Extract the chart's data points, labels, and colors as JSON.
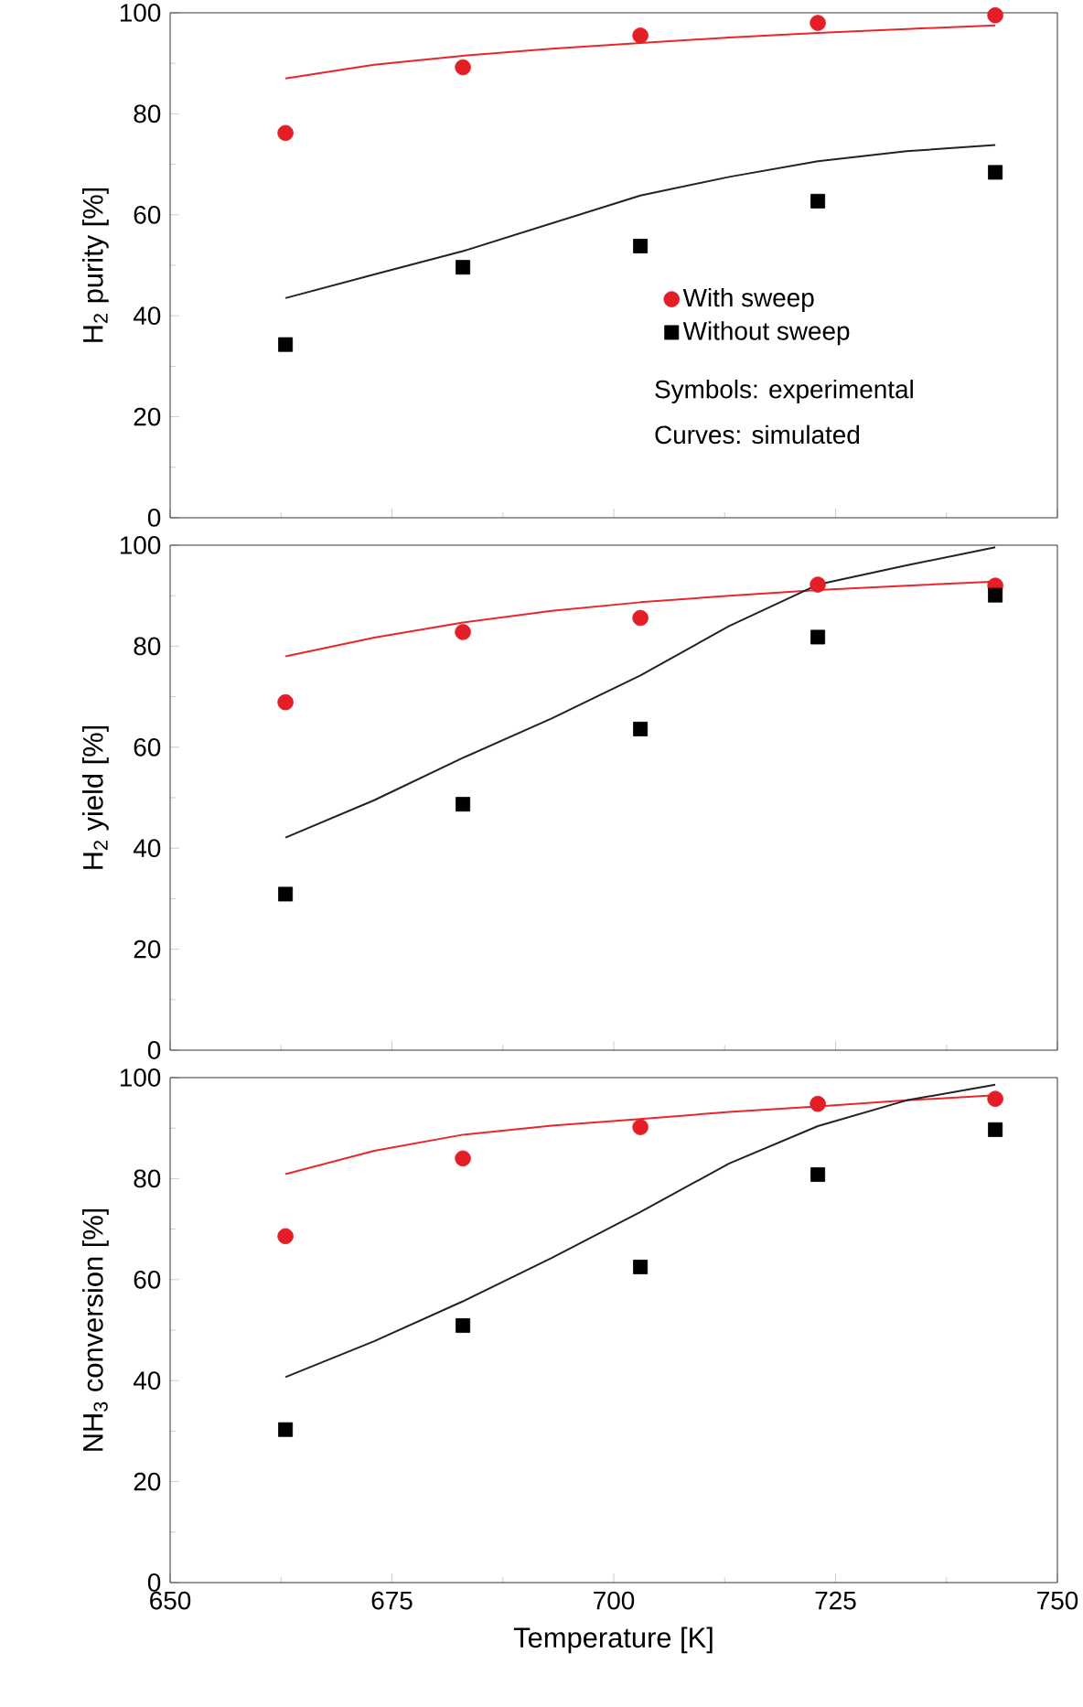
{
  "chart_data": [
    {
      "type": "scatter",
      "ylabel": "H$_{2}$ purity [%]",
      "xlim": [
        650,
        750
      ],
      "xticks": [
        650,
        675,
        700,
        725,
        750
      ],
      "ylim": [
        0,
        100
      ],
      "yticks": [
        0,
        20,
        40,
        60,
        80,
        100
      ],
      "tick_labels": "y",
      "legend": "bottom right",
      "annotations": [
        "Symbols: experimental",
        "Curves: simulated"
      ],
      "series": [
        {
          "name": "With sweep",
          "type": "scatter",
          "marker": "circle",
          "color": "#e41e26",
          "x": [
            663,
            683,
            703,
            723,
            743
          ],
          "values": [
            76.2,
            89.2,
            95.5,
            98,
            99.5
          ]
        },
        {
          "name": "Without sweep",
          "type": "scatter",
          "marker": "square",
          "color": "#000000",
          "x": [
            663,
            683,
            703,
            723,
            743
          ],
          "values": [
            34.3,
            49.6,
            53.8,
            62.7,
            68.4
          ]
        },
        {
          "type": "line",
          "color": "#e8262b",
          "x": [
            663,
            673,
            683,
            693,
            703,
            713,
            723,
            733,
            743
          ],
          "values": [
            87,
            89.7,
            91.5,
            92.9,
            94,
            95.1,
            96,
            96.8,
            97.5
          ]
        },
        {
          "type": "line",
          "color": "#222222",
          "x": [
            663,
            673,
            683,
            693,
            703,
            713,
            723,
            733,
            743
          ],
          "values": [
            43.5,
            48.2,
            52.8,
            58.3,
            63.8,
            67.5,
            70.6,
            72.6,
            73.8
          ]
        }
      ]
    },
    {
      "type": "scatter",
      "ylabel": "H$_{2}$ yield [%]",
      "xlim": [
        650,
        750
      ],
      "xticks": [
        650,
        675,
        700,
        725,
        750
      ],
      "ylim": [
        0,
        100
      ],
      "yticks": [
        0,
        20,
        40,
        60,
        80,
        100
      ],
      "tick_labels": "y",
      "series": [
        {
          "type": "scatter",
          "marker": "circle",
          "color": "#e41e26",
          "x": [
            663,
            683,
            703,
            723,
            743
          ],
          "values": [
            68.9,
            82.8,
            85.6,
            92.2,
            92
          ]
        },
        {
          "type": "scatter",
          "marker": "square",
          "color": "#000000",
          "x": [
            663,
            683,
            703,
            723,
            743
          ],
          "values": [
            30.9,
            48.7,
            63.6,
            81.8,
            90.1
          ]
        },
        {
          "type": "line",
          "color": "#e8262b",
          "x": [
            663,
            673,
            683,
            693,
            703,
            713,
            723,
            733,
            743
          ],
          "values": [
            78,
            81.7,
            84.7,
            87,
            88.7,
            90,
            91.1,
            92,
            92.8
          ]
        },
        {
          "type": "line",
          "color": "#222222",
          "x": [
            663,
            673,
            683,
            693,
            703,
            713,
            723,
            733,
            743
          ],
          "values": [
            42.1,
            49.5,
            57.9,
            65.7,
            74.2,
            84,
            92.2,
            96,
            99.6
          ]
        }
      ]
    },
    {
      "type": "scatter",
      "xlabel": "Temperature [K]",
      "ylabel": "NH$_{3}$ conversion [%]",
      "xlim": [
        650,
        750
      ],
      "xticks": [
        650,
        675,
        700,
        725,
        750
      ],
      "ylim": [
        0,
        100
      ],
      "yticks": [
        0,
        20,
        40,
        60,
        80,
        100
      ],
      "series": [
        {
          "type": "scatter",
          "marker": "circle",
          "color": "#e41e26",
          "x": [
            663,
            683,
            703,
            723,
            743
          ],
          "values": [
            68.6,
            84,
            90.2,
            94.8,
            95.8
          ]
        },
        {
          "type": "scatter",
          "marker": "square",
          "color": "#000000",
          "x": [
            663,
            683,
            703,
            723,
            743
          ],
          "values": [
            30.3,
            50.9,
            62.5,
            80.8,
            89.7
          ]
        },
        {
          "type": "line",
          "color": "#e8262b",
          "x": [
            663,
            673,
            683,
            693,
            703,
            713,
            723,
            733,
            743
          ],
          "values": [
            80.9,
            85.5,
            88.7,
            90.5,
            91.8,
            93.2,
            94.3,
            95.5,
            96.5
          ]
        },
        {
          "type": "line",
          "color": "#222222",
          "x": [
            663,
            673,
            683,
            693,
            703,
            713,
            723,
            733,
            743
          ],
          "values": [
            40.7,
            47.8,
            55.7,
            64.3,
            73.4,
            83,
            90.4,
            95.5,
            98.6
          ]
        }
      ]
    }
  ]
}
